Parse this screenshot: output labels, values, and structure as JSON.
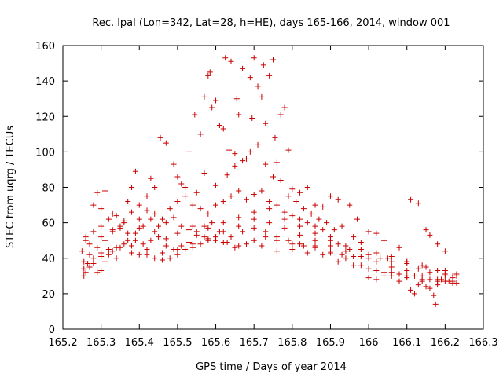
{
  "chart_data": {
    "type": "scatter",
    "title": "Rec. lpal (Lon=342, Lat=28, h=HE), days 165-166, 2014, window 001",
    "xlabel": "GPS time / Days of year 2014",
    "ylabel": "STEC from uqrg / TECUs",
    "xlim": [
      165.2,
      166.3
    ],
    "ylim": [
      0,
      160
    ],
    "x_ticks": [
      "165.2",
      "165.3",
      "165.4",
      "165.5",
      "165.6",
      "165.7",
      "165.8",
      "165.9",
      "166",
      "166.1",
      "166.2",
      "166.3"
    ],
    "y_ticks": [
      "0",
      "20",
      "40",
      "60",
      "80",
      "100",
      "120",
      "140",
      "160"
    ],
    "grid": false,
    "legend": "none",
    "marker": "+",
    "marker_color": "#cc0000",
    "series": [
      {
        "points": [
          [
            165.255,
            30
          ],
          [
            165.26,
            32
          ],
          [
            165.27,
            35
          ],
          [
            165.28,
            37
          ],
          [
            165.29,
            32
          ],
          [
            165.3,
            33
          ],
          [
            165.31,
            38
          ],
          [
            165.32,
            42
          ],
          [
            165.33,
            44
          ],
          [
            165.35,
            46
          ],
          [
            165.37,
            50
          ],
          [
            165.39,
            54
          ],
          [
            165.41,
            58
          ],
          [
            165.43,
            62
          ],
          [
            165.45,
            58
          ],
          [
            165.47,
            60
          ],
          [
            165.49,
            63
          ],
          [
            165.51,
            58
          ],
          [
            165.53,
            56
          ],
          [
            165.55,
            55
          ],
          [
            165.57,
            52
          ],
          [
            165.6,
            50
          ],
          [
            165.63,
            49
          ],
          [
            165.66,
            47
          ],
          [
            165.7,
            50
          ],
          [
            165.73,
            52
          ],
          [
            165.76,
            50
          ],
          [
            165.8,
            48
          ],
          [
            165.83,
            47
          ],
          [
            165.86,
            46
          ],
          [
            165.9,
            43
          ],
          [
            165.93,
            42
          ],
          [
            165.96,
            41
          ],
          [
            166.0,
            40
          ],
          [
            166.03,
            40
          ],
          [
            166.06,
            38
          ],
          [
            166.1,
            37
          ],
          [
            166.13,
            34
          ],
          [
            166.16,
            32
          ],
          [
            166.2,
            31
          ],
          [
            166.23,
            30
          ],
          [
            165.255,
            34
          ],
          [
            165.265,
            37
          ],
          [
            165.28,
            40
          ],
          [
            165.3,
            43
          ],
          [
            165.32,
            45
          ],
          [
            165.34,
            46
          ],
          [
            165.36,
            48
          ],
          [
            165.38,
            43
          ],
          [
            165.4,
            42
          ],
          [
            165.42,
            42
          ],
          [
            165.44,
            40
          ],
          [
            165.46,
            39
          ],
          [
            165.48,
            40
          ],
          [
            165.5,
            42
          ],
          [
            165.52,
            45
          ],
          [
            165.54,
            46
          ],
          [
            165.56,
            48
          ],
          [
            165.58,
            50
          ],
          [
            165.6,
            52
          ],
          [
            165.62,
            49
          ],
          [
            165.65,
            46
          ],
          [
            165.68,
            48
          ],
          [
            165.72,
            47
          ],
          [
            165.76,
            44
          ],
          [
            165.8,
            45
          ],
          [
            165.84,
            43
          ],
          [
            165.88,
            42
          ],
          [
            165.92,
            38
          ],
          [
            165.96,
            36
          ],
          [
            166.0,
            34
          ],
          [
            166.04,
            32
          ],
          [
            166.08,
            31
          ],
          [
            166.12,
            30
          ],
          [
            166.16,
            28
          ],
          [
            166.2,
            27
          ],
          [
            166.23,
            26
          ],
          [
            165.255,
            38
          ],
          [
            165.27,
            42
          ],
          [
            165.29,
            46
          ],
          [
            165.31,
            50
          ],
          [
            165.33,
            55
          ],
          [
            165.35,
            58
          ],
          [
            165.37,
            54
          ],
          [
            165.39,
            50
          ],
          [
            165.41,
            48
          ],
          [
            165.43,
            50
          ],
          [
            165.45,
            52
          ],
          [
            165.47,
            47
          ],
          [
            165.49,
            45
          ],
          [
            165.51,
            47
          ],
          [
            165.53,
            49
          ],
          [
            165.55,
            53
          ],
          [
            165.57,
            58
          ],
          [
            165.59,
            60
          ],
          [
            165.61,
            55
          ],
          [
            165.64,
            52
          ],
          [
            165.67,
            55
          ],
          [
            165.7,
            57
          ],
          [
            165.73,
            55
          ],
          [
            165.76,
            52
          ],
          [
            165.79,
            50
          ],
          [
            165.82,
            48
          ],
          [
            165.86,
            47
          ],
          [
            165.9,
            44
          ],
          [
            165.94,
            40
          ],
          [
            165.98,
            36
          ],
          [
            166.02,
            33
          ],
          [
            166.06,
            30
          ],
          [
            166.1,
            29
          ],
          [
            166.14,
            28
          ],
          [
            166.18,
            27
          ],
          [
            166.22,
            26
          ],
          [
            165.26,
            50
          ],
          [
            165.28,
            55
          ],
          [
            165.3,
            58
          ],
          [
            165.32,
            62
          ],
          [
            165.34,
            64
          ],
          [
            165.36,
            60
          ],
          [
            165.38,
            66
          ],
          [
            165.4,
            62
          ],
          [
            165.42,
            67
          ],
          [
            165.44,
            65
          ],
          [
            165.46,
            62
          ],
          [
            165.48,
            68
          ],
          [
            165.5,
            72
          ],
          [
            165.52,
            75
          ],
          [
            165.54,
            70
          ],
          [
            165.56,
            68
          ],
          [
            165.58,
            65
          ],
          [
            165.6,
            70
          ],
          [
            165.62,
            72
          ],
          [
            165.64,
            75
          ],
          [
            165.66,
            78
          ],
          [
            165.68,
            73
          ],
          [
            165.7,
            76
          ],
          [
            165.72,
            78
          ],
          [
            165.74,
            72
          ],
          [
            165.76,
            70
          ],
          [
            165.78,
            66
          ],
          [
            165.8,
            64
          ],
          [
            165.82,
            62
          ],
          [
            165.84,
            60
          ],
          [
            165.86,
            58
          ],
          [
            165.88,
            56
          ],
          [
            165.9,
            52
          ],
          [
            165.92,
            48
          ],
          [
            165.95,
            45
          ],
          [
            166.0,
            42
          ],
          [
            166.05,
            40
          ],
          [
            166.1,
            38
          ],
          [
            166.15,
            35
          ],
          [
            166.2,
            33
          ],
          [
            165.26,
            52
          ],
          [
            165.3,
            68
          ],
          [
            165.33,
            65
          ],
          [
            165.37,
            72
          ],
          [
            165.38,
            80
          ],
          [
            165.39,
            89
          ],
          [
            165.42,
            75
          ],
          [
            165.44,
            80
          ],
          [
            165.455,
            108
          ],
          [
            165.47,
            105
          ],
          [
            165.49,
            93
          ],
          [
            165.51,
            82
          ],
          [
            165.53,
            100
          ],
          [
            165.545,
            121
          ],
          [
            165.56,
            110
          ],
          [
            165.57,
            131
          ],
          [
            165.58,
            143
          ],
          [
            165.585,
            145
          ],
          [
            165.59,
            125
          ],
          [
            165.6,
            129
          ],
          [
            165.61,
            115
          ],
          [
            165.62,
            113
          ],
          [
            165.625,
            153
          ],
          [
            165.635,
            101
          ],
          [
            165.64,
            151
          ],
          [
            165.65,
            92
          ],
          [
            165.655,
            130
          ],
          [
            165.66,
            121
          ],
          [
            165.67,
            147
          ],
          [
            165.68,
            96
          ],
          [
            165.69,
            142
          ],
          [
            165.695,
            119
          ],
          [
            165.7,
            153
          ],
          [
            165.71,
            137
          ],
          [
            165.72,
            131
          ],
          [
            165.725,
            149
          ],
          [
            165.73,
            116
          ],
          [
            165.74,
            143
          ],
          [
            165.75,
            152
          ],
          [
            165.755,
            108
          ],
          [
            165.76,
            94
          ],
          [
            165.77,
            121
          ],
          [
            165.78,
            125
          ],
          [
            165.79,
            101
          ],
          [
            165.8,
            79
          ],
          [
            165.82,
            77
          ],
          [
            165.84,
            80
          ],
          [
            165.86,
            70
          ],
          [
            165.88,
            69
          ],
          [
            165.9,
            75
          ],
          [
            165.92,
            73
          ],
          [
            165.95,
            70
          ],
          [
            165.97,
            62
          ],
          [
            166.0,
            55
          ],
          [
            165.28,
            70
          ],
          [
            165.29,
            77
          ],
          [
            165.31,
            78
          ],
          [
            165.35,
            57
          ],
          [
            165.4,
            70
          ],
          [
            165.43,
            85
          ],
          [
            165.5,
            86
          ],
          [
            165.52,
            80
          ],
          [
            165.55,
            77
          ],
          [
            165.57,
            88
          ],
          [
            165.6,
            81
          ],
          [
            165.63,
            87
          ],
          [
            165.65,
            99
          ],
          [
            165.67,
            95
          ],
          [
            165.69,
            100
          ],
          [
            165.71,
            104
          ],
          [
            165.73,
            93
          ],
          [
            165.75,
            86
          ],
          [
            165.77,
            84
          ],
          [
            165.79,
            75
          ],
          [
            165.81,
            72
          ],
          [
            165.83,
            68
          ],
          [
            165.85,
            65
          ],
          [
            165.87,
            62
          ],
          [
            165.89,
            60
          ],
          [
            165.91,
            56
          ],
          [
            165.93,
            58
          ],
          [
            165.96,
            52
          ],
          [
            165.98,
            49
          ],
          [
            166.02,
            54
          ],
          [
            166.04,
            50
          ],
          [
            166.08,
            46
          ],
          [
            166.11,
            73
          ],
          [
            166.13,
            71
          ],
          [
            166.15,
            56
          ],
          [
            166.16,
            53
          ],
          [
            166.18,
            48
          ],
          [
            166.2,
            44
          ],
          [
            166.0,
            29
          ],
          [
            166.02,
            28
          ],
          [
            166.04,
            30
          ],
          [
            166.06,
            32
          ],
          [
            166.08,
            27
          ],
          [
            166.1,
            30
          ],
          [
            166.11,
            22
          ],
          [
            166.12,
            20
          ],
          [
            166.13,
            25
          ],
          [
            166.14,
            27
          ],
          [
            166.15,
            24
          ],
          [
            166.16,
            23
          ],
          [
            166.17,
            19
          ],
          [
            166.175,
            14
          ],
          [
            166.18,
            25
          ],
          [
            166.19,
            28
          ],
          [
            166.2,
            30
          ],
          [
            166.21,
            27
          ],
          [
            166.22,
            29
          ],
          [
            166.23,
            31
          ],
          [
            165.25,
            44
          ],
          [
            165.27,
            48
          ],
          [
            165.3,
            52
          ],
          [
            165.33,
            56
          ],
          [
            165.36,
            61
          ],
          [
            165.4,
            57
          ],
          [
            165.44,
            55
          ],
          [
            165.47,
            51
          ],
          [
            165.5,
            54
          ],
          [
            165.54,
            58
          ],
          [
            165.58,
            57
          ],
          [
            165.62,
            60
          ],
          [
            165.66,
            63
          ],
          [
            165.7,
            66
          ],
          [
            165.74,
            68
          ],
          [
            165.78,
            62
          ],
          [
            165.82,
            58
          ],
          [
            165.86,
            54
          ],
          [
            165.9,
            50
          ],
          [
            165.94,
            47
          ],
          [
            165.98,
            45
          ],
          [
            166.02,
            43
          ],
          [
            166.06,
            41
          ],
          [
            166.1,
            38
          ],
          [
            166.14,
            36
          ],
          [
            166.18,
            33
          ],
          [
            166.22,
            30
          ],
          [
            165.3,
            41
          ],
          [
            165.34,
            40
          ],
          [
            165.38,
            47
          ],
          [
            165.42,
            45
          ],
          [
            165.46,
            43
          ],
          [
            165.5,
            45
          ],
          [
            165.54,
            48
          ],
          [
            165.58,
            51
          ],
          [
            165.62,
            55
          ],
          [
            165.66,
            58
          ],
          [
            165.7,
            62
          ],
          [
            165.74,
            60
          ],
          [
            165.78,
            57
          ],
          [
            165.82,
            53
          ],
          [
            165.86,
            50
          ],
          [
            165.9,
            47
          ],
          [
            165.94,
            44
          ],
          [
            165.98,
            41
          ],
          [
            166.02,
            38
          ],
          [
            166.06,
            35
          ],
          [
            166.1,
            33
          ],
          [
            166.14,
            30
          ],
          [
            166.18,
            28
          ],
          [
            166.22,
            27
          ]
        ]
      }
    ]
  }
}
